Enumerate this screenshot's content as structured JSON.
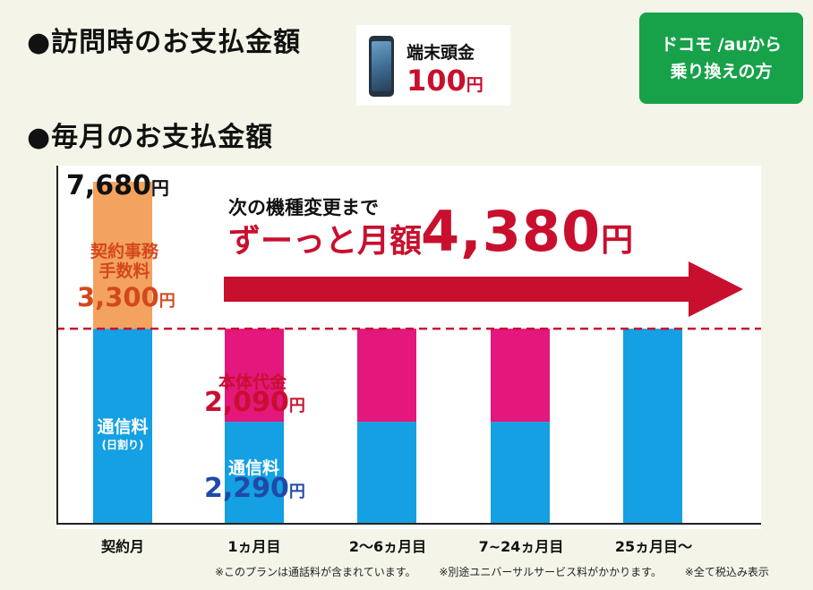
{
  "headings": {
    "visit_payment": "●訪問時のお支払金額",
    "monthly_payment": "●毎月のお支払金額"
  },
  "device_payment": {
    "label": "端末頭金",
    "amount": "100",
    "unit": "円"
  },
  "switch_badge": {
    "line1": "ドコモ /auから",
    "line2": "乗り換えの方"
  },
  "banner": {
    "line1": "次の機種変更まで",
    "line2": "ずーっと月額",
    "amount": "4,380",
    "unit": "円"
  },
  "first_month": {
    "total": "7,680",
    "total_unit": "円",
    "fee_name_1": "契約事務",
    "fee_name_2": "手数料",
    "fee_amount": "3,300",
    "fee_unit": "円",
    "comm_name": "通信料",
    "comm_sub": "(日割り)"
  },
  "device_cost": {
    "name": "本体代金",
    "amount": "2,090",
    "unit": "円"
  },
  "comm_cost": {
    "name": "通信料",
    "amount": "2,290",
    "unit": "円"
  },
  "footnotes": [
    "※このプランは通話料が含まれています。",
    "※別途ユニバーサルサービス料がかかります。",
    "※全て税込み表示"
  ],
  "colors": {
    "fee": "#f3a35f",
    "communication": "#14a0e3",
    "device": "#e3177c",
    "accent_red": "#c8102e",
    "badge_green": "#17a24a"
  },
  "chart_data": {
    "type": "bar",
    "stacked": true,
    "categories": [
      "契約月",
      "1ヵ月目",
      "2～6ヵ月目",
      "7~24ヵ月目",
      "25ヵ月目～"
    ],
    "series": [
      {
        "name": "通信料",
        "values": [
          4380,
          2290,
          2290,
          2290,
          4380
        ]
      },
      {
        "name": "本体代金",
        "values": [
          0,
          2090,
          2090,
          2090,
          0
        ]
      },
      {
        "name": "契約事務手数料",
        "values": [
          3300,
          0,
          0,
          0,
          0
        ]
      }
    ],
    "reference_line": 4380
  }
}
